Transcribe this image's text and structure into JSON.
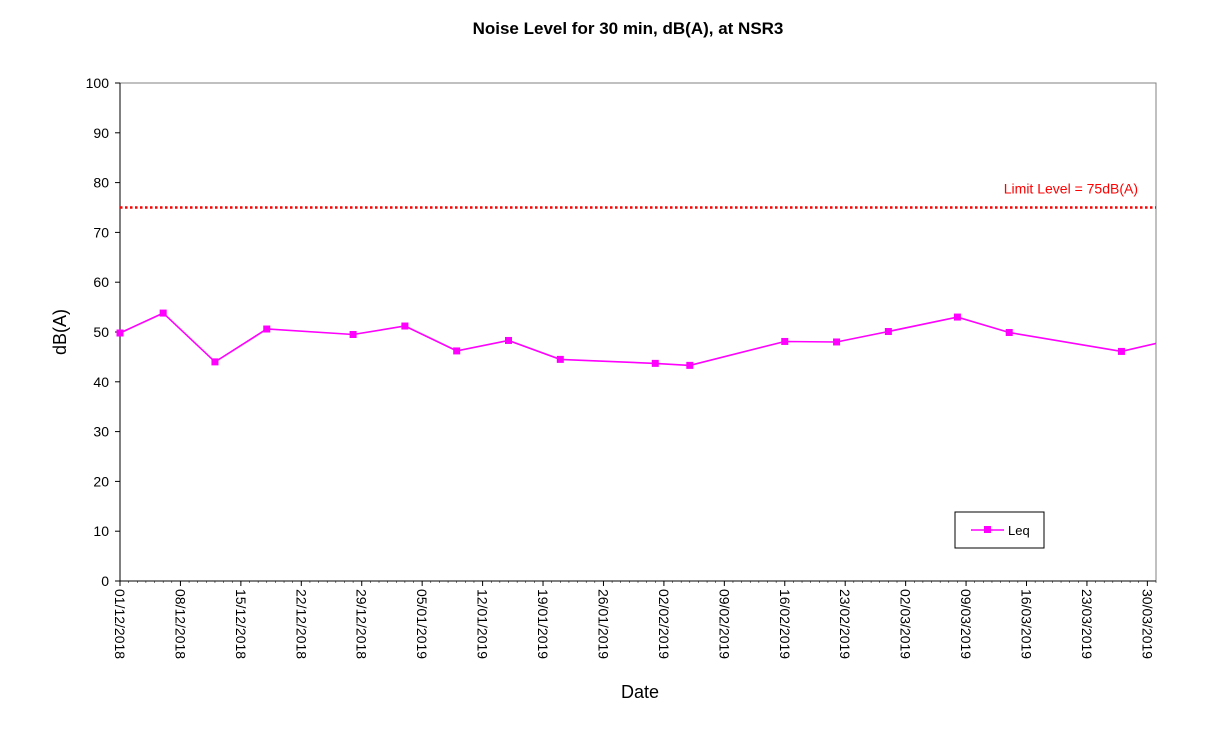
{
  "chart_data": {
    "type": "line",
    "title": "Noise Level for 30 min, dB(A), at NSR3",
    "xlabel": "Date",
    "ylabel": "dB(A)",
    "ylim": [
      0,
      100
    ],
    "yticks": [
      0,
      10,
      20,
      30,
      40,
      50,
      60,
      70,
      80,
      90,
      100
    ],
    "xlim": [
      "2018-12-01",
      "2019-03-31"
    ],
    "xtick_labels": [
      "01/12/2018",
      "08/12/2018",
      "15/12/2018",
      "22/12/2018",
      "29/12/2018",
      "05/01/2019",
      "12/01/2019",
      "19/01/2019",
      "26/01/2019",
      "02/02/2019",
      "09/02/2019",
      "16/02/2019",
      "23/02/2019",
      "02/03/2019",
      "09/03/2019",
      "16/03/2019",
      "23/03/2019",
      "30/03/2019"
    ],
    "grid": false,
    "legend_position": "bottom-right",
    "series": [
      {
        "name": "Leq",
        "color": "#ff00ff",
        "marker": "square",
        "x": [
          "2018-12-01",
          "2018-12-06",
          "2018-12-12",
          "2018-12-18",
          "2018-12-28",
          "2019-01-03",
          "2019-01-09",
          "2019-01-15",
          "2019-01-21",
          "2019-02-01",
          "2019-02-05",
          "2019-02-16",
          "2019-02-22",
          "2019-02-28",
          "2019-03-08",
          "2019-03-14",
          "2019-03-27",
          "2019-04-02"
        ],
        "y": [
          49.8,
          53.8,
          44.0,
          50.6,
          49.5,
          51.2,
          46.2,
          48.3,
          44.5,
          43.7,
          43.3,
          48.1,
          48.0,
          50.1,
          53.0,
          49.9,
          46.1,
          48.5
        ]
      }
    ],
    "reference_lines": [
      {
        "label": "Limit Level = 75dB(A)",
        "y": 75,
        "color": "#ff0000",
        "style": "dotted"
      }
    ]
  }
}
